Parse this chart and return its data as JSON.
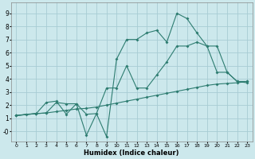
{
  "xlabel": "Humidex (Indice chaleur)",
  "bg_color": "#cce8ec",
  "grid_color": "#a8ccd4",
  "line_color": "#2d7c70",
  "xlim": [
    -0.5,
    23.5
  ],
  "ylim": [
    -0.8,
    9.8
  ],
  "xticks": [
    0,
    1,
    2,
    3,
    4,
    5,
    6,
    7,
    8,
    9,
    10,
    11,
    12,
    13,
    14,
    15,
    16,
    17,
    18,
    19,
    20,
    21,
    22,
    23
  ],
  "yticks": [
    0,
    1,
    2,
    3,
    4,
    5,
    6,
    7,
    8,
    9
  ],
  "ytick_labels": [
    "-0",
    "1",
    "2",
    "3",
    "4",
    "5",
    "6",
    "7",
    "8",
    "9"
  ],
  "line1_x": [
    0,
    1,
    2,
    3,
    4,
    5,
    6,
    7,
    8,
    9,
    10,
    11,
    12,
    13,
    14,
    15,
    16,
    17,
    18,
    19,
    20,
    21,
    22,
    23
  ],
  "line1_y": [
    1.2,
    1.3,
    1.35,
    1.4,
    1.5,
    1.6,
    1.7,
    1.75,
    1.85,
    2.0,
    2.15,
    2.3,
    2.45,
    2.6,
    2.75,
    2.9,
    3.05,
    3.2,
    3.35,
    3.5,
    3.6,
    3.65,
    3.7,
    3.8
  ],
  "line2_x": [
    0,
    2,
    3,
    4,
    5,
    6,
    7,
    8,
    9,
    10,
    11,
    12,
    13,
    14,
    15,
    16,
    17,
    18,
    19,
    20,
    21,
    22,
    23
  ],
  "line2_y": [
    1.2,
    1.35,
    2.2,
    2.3,
    1.3,
    2.1,
    -0.3,
    1.35,
    -0.4,
    5.5,
    7.0,
    7.0,
    7.5,
    7.7,
    6.8,
    9.0,
    8.6,
    7.5,
    6.5,
    4.5,
    4.5,
    3.8,
    3.7
  ],
  "line3_x": [
    0,
    2,
    3,
    4,
    5,
    6,
    7,
    8,
    9,
    10,
    11,
    12,
    13,
    14,
    15,
    16,
    17,
    18,
    19,
    20,
    21,
    22,
    23
  ],
  "line3_y": [
    1.2,
    1.35,
    1.4,
    2.2,
    2.1,
    2.1,
    1.3,
    1.35,
    3.3,
    3.3,
    5.0,
    3.3,
    3.3,
    4.3,
    5.3,
    6.5,
    6.5,
    6.8,
    6.5,
    6.5,
    4.5,
    3.8,
    3.8
  ]
}
